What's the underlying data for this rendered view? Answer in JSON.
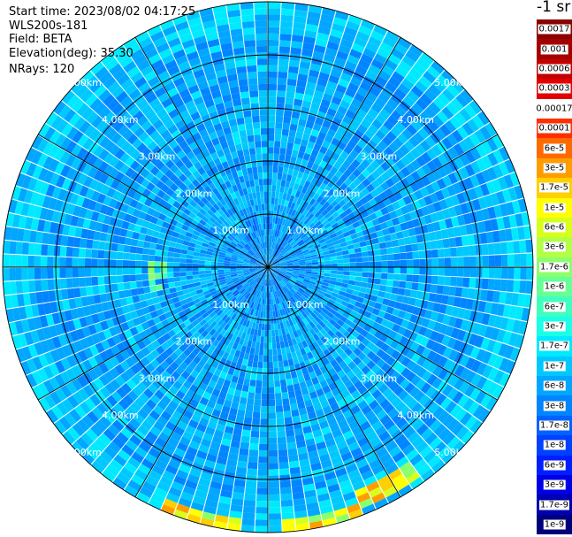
{
  "header": {
    "start_time": "Start time: 2023/08/02 04:17:25",
    "instrument": "WLS200s-181",
    "field": "Field: BETA",
    "elevation": "Elevation(deg): 35.30",
    "nrays": "NRays: 120"
  },
  "colorbar": {
    "unit_label": "-1 sr",
    "segments": [
      {
        "label": "0.0017",
        "color": "#8b0000"
      },
      {
        "label": "0.001",
        "color": "#a50000"
      },
      {
        "label": "0.0006",
        "color": "#c40000"
      },
      {
        "label": "0.0003",
        "color": "#e30000"
      },
      {
        "label": "0.00017",
        "color": "#ffffff"
      },
      {
        "label": "0.0001",
        "color": "#ff3000"
      },
      {
        "label": "6e-5",
        "color": "#ff6a00"
      },
      {
        "label": "3e-5",
        "color": "#ff9d00"
      },
      {
        "label": "1.7e-5",
        "color": "#ffcf00"
      },
      {
        "label": "1e-5",
        "color": "#ffff00"
      },
      {
        "label": "6e-6",
        "color": "#d8ff1c"
      },
      {
        "label": "3e-6",
        "color": "#b2ff45"
      },
      {
        "label": "1.7e-6",
        "color": "#8cff6d"
      },
      {
        "label": "1e-6",
        "color": "#66ff96"
      },
      {
        "label": "6e-7",
        "color": "#40ffbe"
      },
      {
        "label": "3e-7",
        "color": "#1affe6"
      },
      {
        "label": "1.7e-7",
        "color": "#00eaff"
      },
      {
        "label": "1e-7",
        "color": "#00c8ff"
      },
      {
        "label": "6e-8",
        "color": "#00a6ff"
      },
      {
        "label": "3e-8",
        "color": "#0084ff"
      },
      {
        "label": "1.7e-8",
        "color": "#0062ff"
      },
      {
        "label": "1e-8",
        "color": "#0040ff"
      },
      {
        "label": "6e-9",
        "color": "#001eff"
      },
      {
        "label": "3e-9",
        "color": "#0000e6"
      },
      {
        "label": "1.7e-9",
        "color": "#0000b0"
      },
      {
        "label": "1e-9",
        "color": "#00007a"
      }
    ]
  },
  "chart_data": {
    "type": "heatmap",
    "projection": "polar-ppi",
    "field": "BETA",
    "n_rays": 120,
    "elevation_deg": 35.3,
    "range_ring_labels": [
      "1.00km",
      "2.00km",
      "3.00km",
      "4.00km",
      "5.00km"
    ],
    "ring_ranges_km": [
      1,
      2,
      3,
      4,
      5
    ],
    "spoke_angles_deg": [
      0,
      30,
      60,
      90,
      120,
      150,
      180,
      210,
      240,
      270,
      300,
      330
    ],
    "max_range_km": 5.0,
    "background_level": "1.7e-8 to 1e-7",
    "highlight_regions": [
      {
        "description": "greenish band",
        "range_km": 2.1,
        "azimuth_deg": 265
      },
      {
        "description": "yellow/orange patches",
        "range_km": 4.9,
        "azimuth_deg": 195
      },
      {
        "description": "yellow/orange patches",
        "range_km": 4.9,
        "azimuth_deg": 168
      },
      {
        "description": "yellow/orange patches",
        "range_km": 4.7,
        "azimuth_deg": 152
      }
    ]
  }
}
